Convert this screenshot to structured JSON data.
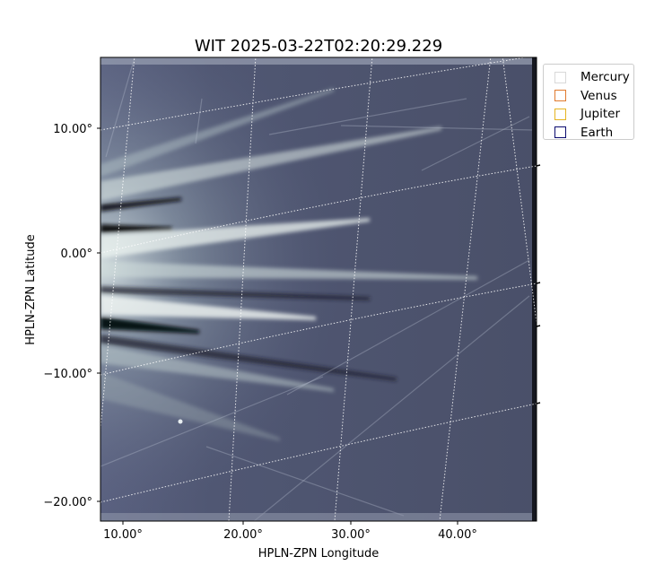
{
  "chart_data": {
    "type": "image",
    "title": "WIT 2025-03-22T02:20:29.229",
    "xlabel": "HPLN-ZPN Longitude",
    "ylabel": "HPLN-ZPN Latitude",
    "x_ticks": [
      {
        "label": "10.00°",
        "value": 10
      },
      {
        "label": "20.00°",
        "value": 20
      },
      {
        "label": "30.00°",
        "value": 30
      },
      {
        "label": "40.00°",
        "value": 40
      }
    ],
    "y_ticks": [
      {
        "label": "10.00°",
        "value": 10
      },
      {
        "label": "0.00°",
        "value": 0
      },
      {
        "label": "−10.00°",
        "value": -10
      },
      {
        "label": "−20.00°",
        "value": -20
      }
    ],
    "grid": true,
    "colormap": "bone-like dark slate blue",
    "legend": {
      "placement": "right, outside axes",
      "entries": [
        {
          "name": "Mercury",
          "color": "#d9d9d9"
        },
        {
          "name": "Venus",
          "color": "#e07a2e"
        },
        {
          "name": "Jupiter",
          "color": "#e6b422"
        },
        {
          "name": "Earth",
          "color": "#0a0a6e"
        }
      ]
    }
  }
}
